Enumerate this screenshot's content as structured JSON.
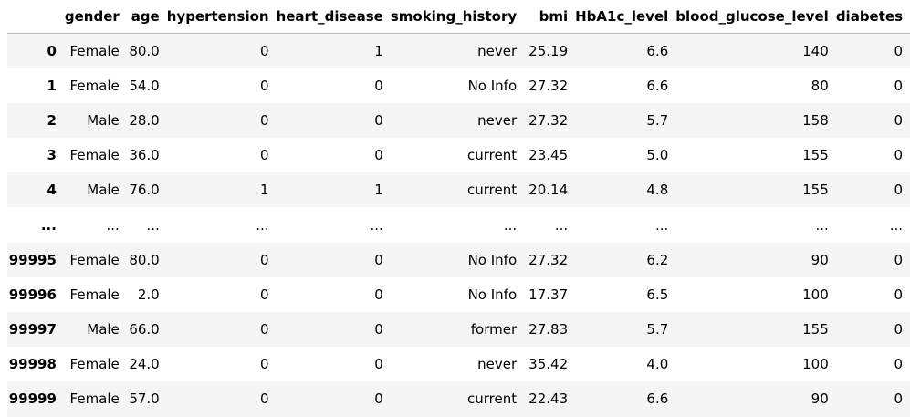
{
  "table": {
    "columns": [
      "",
      "gender",
      "age",
      "hypertension",
      "heart_disease",
      "smoking_history",
      "bmi",
      "HbA1c_level",
      "blood_glucose_level",
      "diabetes"
    ],
    "rows": [
      {
        "index": "0",
        "cells": [
          "Female",
          "80.0",
          "0",
          "1",
          "never",
          "25.19",
          "6.6",
          "140",
          "0"
        ]
      },
      {
        "index": "1",
        "cells": [
          "Female",
          "54.0",
          "0",
          "0",
          "No Info",
          "27.32",
          "6.6",
          "80",
          "0"
        ]
      },
      {
        "index": "2",
        "cells": [
          "Male",
          "28.0",
          "0",
          "0",
          "never",
          "27.32",
          "5.7",
          "158",
          "0"
        ]
      },
      {
        "index": "3",
        "cells": [
          "Female",
          "36.0",
          "0",
          "0",
          "current",
          "23.45",
          "5.0",
          "155",
          "0"
        ]
      },
      {
        "index": "4",
        "cells": [
          "Male",
          "76.0",
          "1",
          "1",
          "current",
          "20.14",
          "4.8",
          "155",
          "0"
        ]
      },
      {
        "index": "...",
        "cells": [
          "...",
          "...",
          "...",
          "...",
          "...",
          "...",
          "...",
          "...",
          "..."
        ]
      },
      {
        "index": "99995",
        "cells": [
          "Female",
          "80.0",
          "0",
          "0",
          "No Info",
          "27.32",
          "6.2",
          "90",
          "0"
        ]
      },
      {
        "index": "99996",
        "cells": [
          "Female",
          "2.0",
          "0",
          "0",
          "No Info",
          "17.37",
          "6.5",
          "100",
          "0"
        ]
      },
      {
        "index": "99997",
        "cells": [
          "Male",
          "66.0",
          "0",
          "0",
          "former",
          "27.83",
          "5.7",
          "155",
          "0"
        ]
      },
      {
        "index": "99998",
        "cells": [
          "Female",
          "24.0",
          "0",
          "0",
          "never",
          "35.42",
          "4.0",
          "100",
          "0"
        ]
      },
      {
        "index": "99999",
        "cells": [
          "Female",
          "57.0",
          "0",
          "0",
          "current",
          "22.43",
          "6.6",
          "90",
          "0"
        ]
      }
    ]
  }
}
